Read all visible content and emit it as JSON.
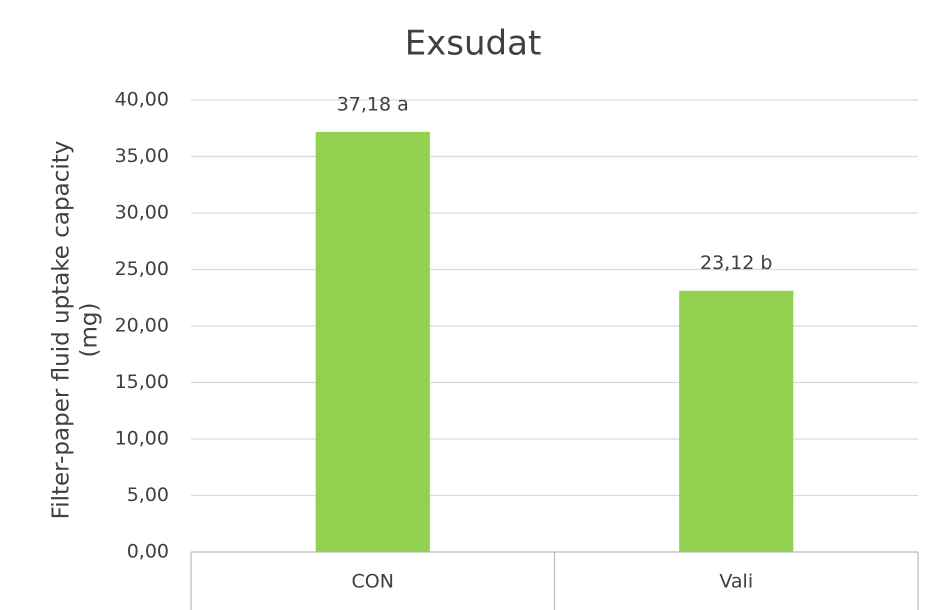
{
  "chart_data": {
    "type": "bar",
    "title": "Exsudat",
    "y_label": [
      "Filter-paper fluid uptake capacity",
      "(mg)"
    ],
    "categories": [
      "CON",
      "Vali"
    ],
    "values": [
      37.18,
      23.12
    ],
    "value_labels": [
      "37,18 a",
      "23,12 b"
    ],
    "color": "#92d050",
    "ylim": [
      0,
      40
    ],
    "yticks": [
      {
        "value": 0,
        "label": "0,00"
      },
      {
        "value": 5,
        "label": "5,00"
      },
      {
        "value": 10,
        "label": "10,00"
      },
      {
        "value": 15,
        "label": "15,00"
      },
      {
        "value": 20,
        "label": "20,00"
      },
      {
        "value": 25,
        "label": "25,00"
      },
      {
        "value": 30,
        "label": "30,00"
      },
      {
        "value": 35,
        "label": "35,00"
      },
      {
        "value": 40,
        "label": "40,00"
      }
    ],
    "grid": true
  }
}
